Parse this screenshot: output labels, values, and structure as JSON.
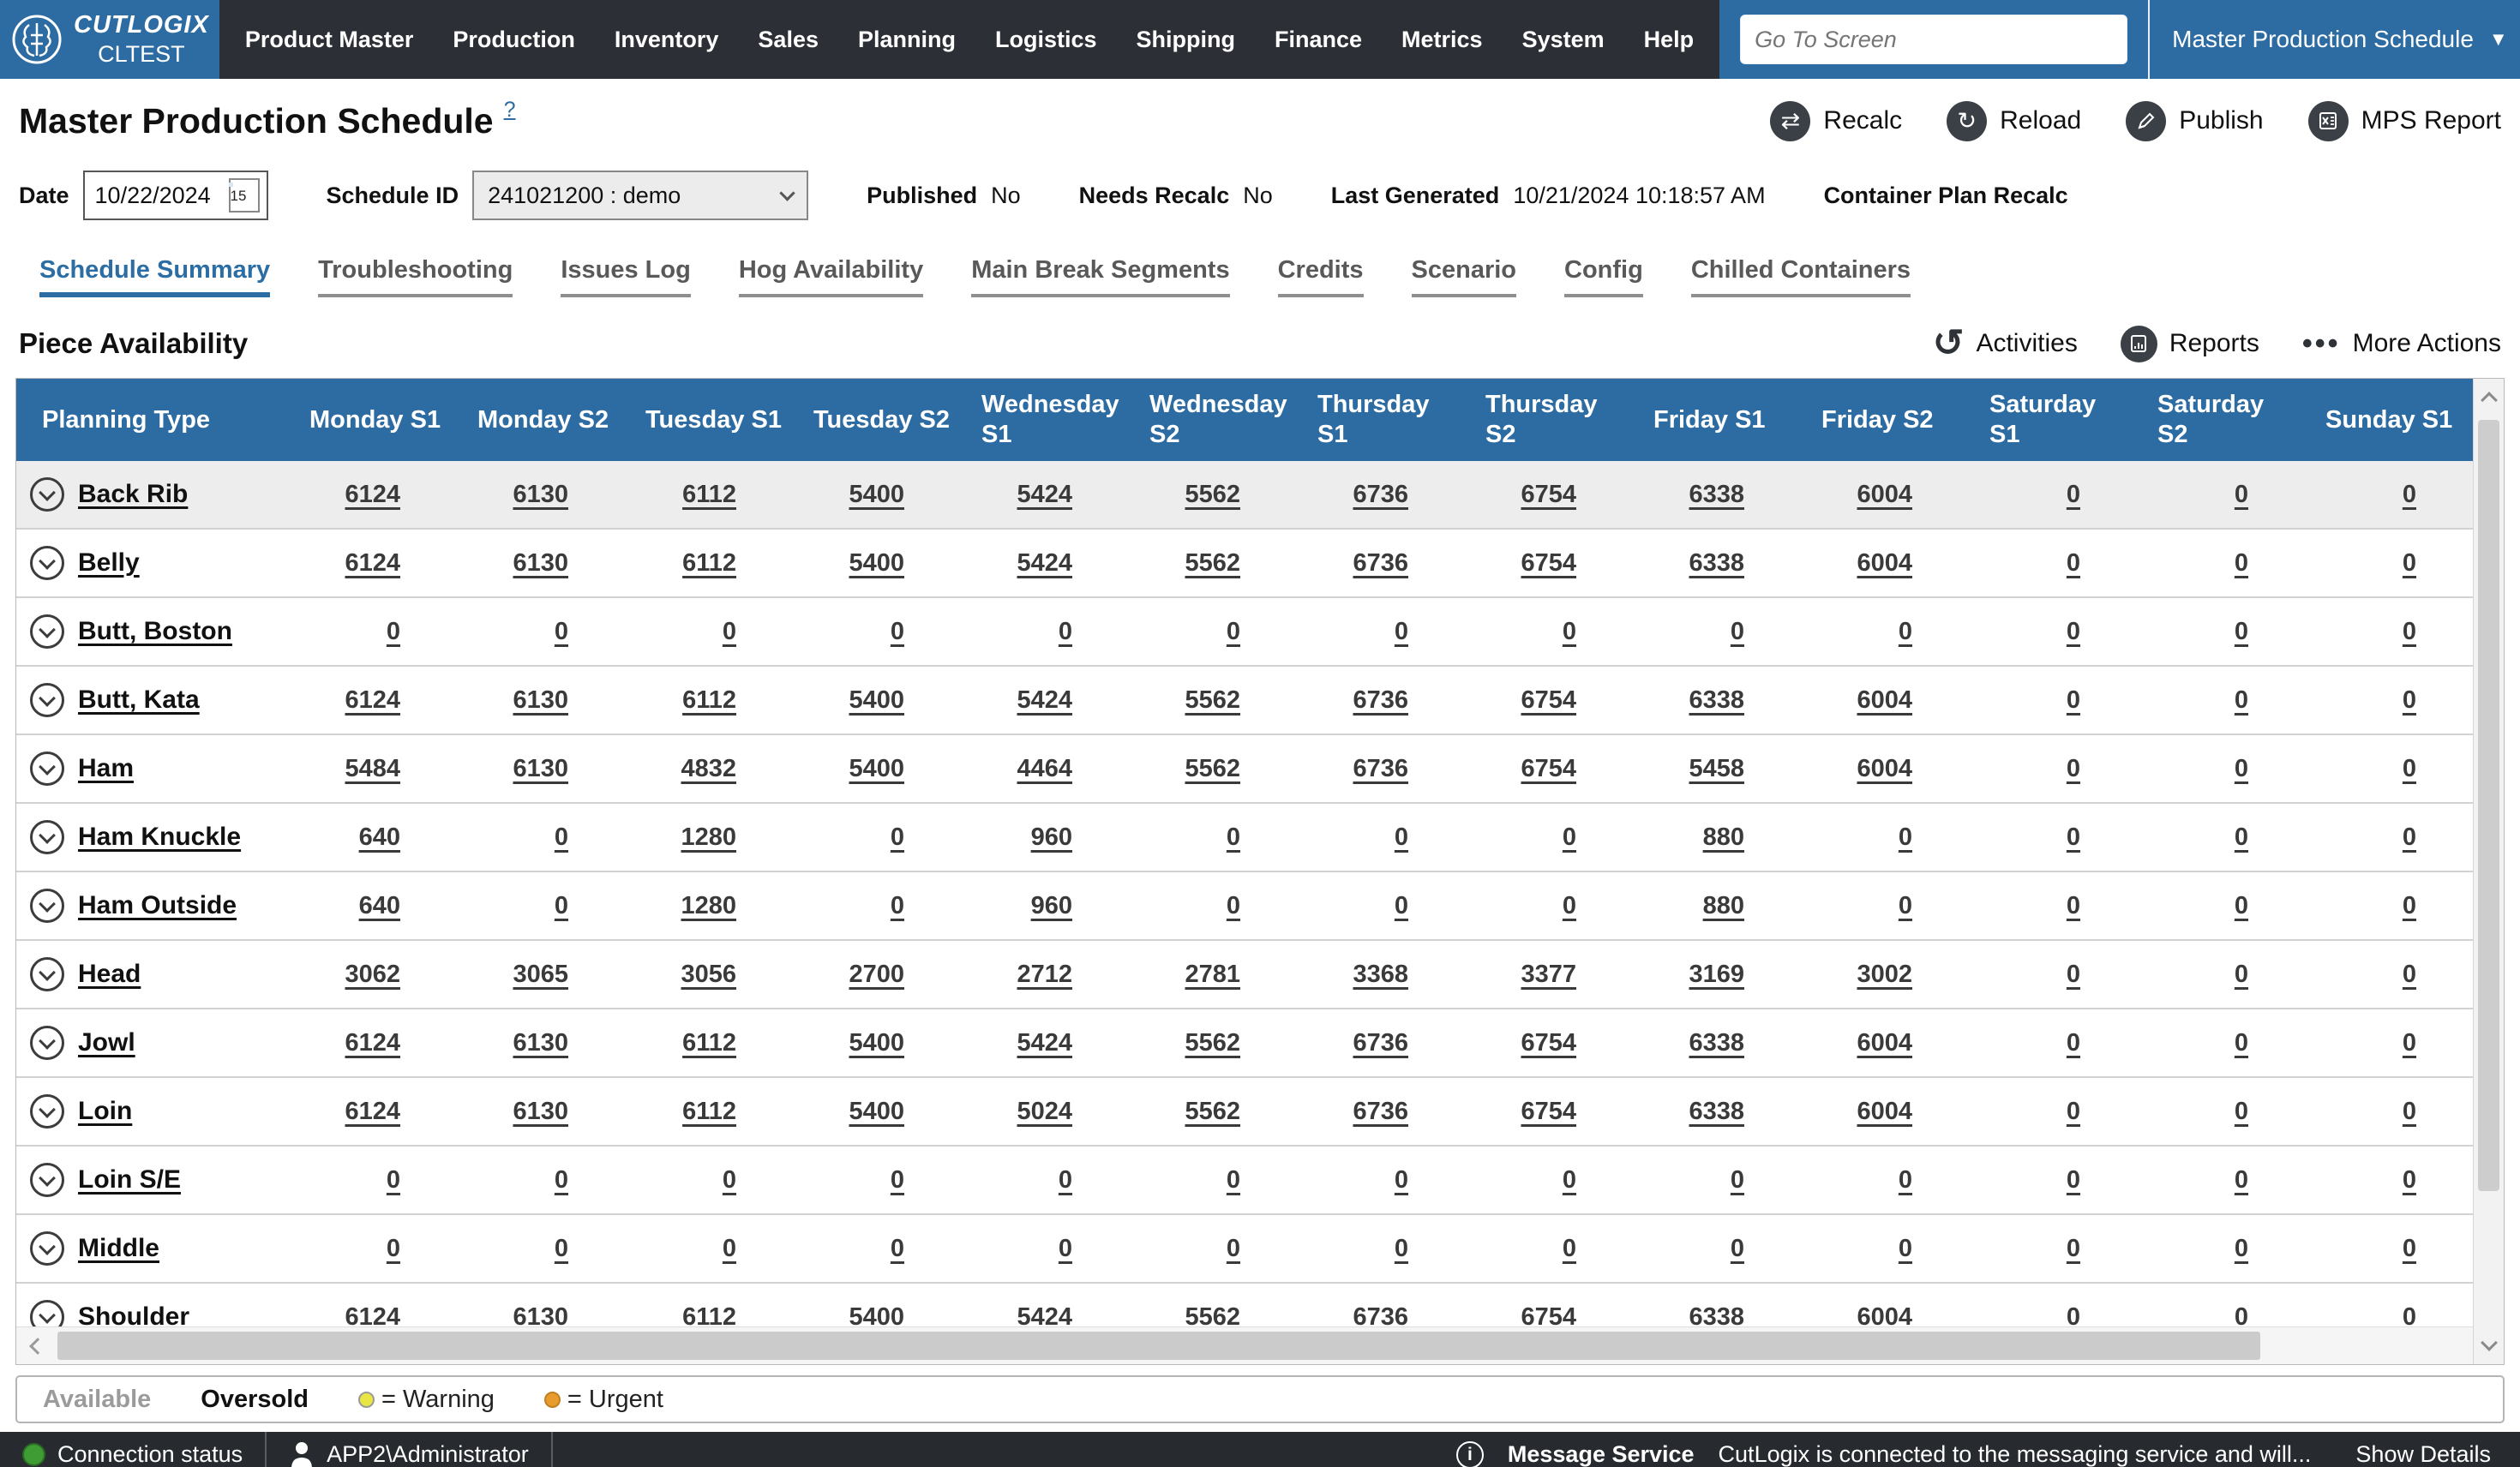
{
  "colors": {
    "accent_blue": "#2d6ca2",
    "nav_dark": "#2c3036",
    "warning_yellow": "#e8e544",
    "urgent_orange": "#e89b2e",
    "status_green": "#3f9c35"
  },
  "nav": {
    "brand": {
      "name": "CUTLOGIX",
      "env": "CLTEST"
    },
    "items": [
      "Product Master",
      "Production",
      "Inventory",
      "Sales",
      "Planning",
      "Logistics",
      "Shipping",
      "Finance",
      "Metrics",
      "System",
      "Help"
    ],
    "goto_placeholder": "Go To Screen",
    "screen_selector": "Master Production Schedule"
  },
  "titlebar": {
    "title": "Master Production Schedule",
    "help": "?",
    "actions": [
      {
        "label": "Recalc",
        "icon": "recalc-icon",
        "glyph": "⇄"
      },
      {
        "label": "Reload",
        "icon": "reload-icon",
        "glyph": "↻"
      },
      {
        "label": "Publish",
        "icon": "publish-icon",
        "glyph": "pencil"
      },
      {
        "label": "MPS Report",
        "icon": "mps-report-icon",
        "glyph": "excel"
      }
    ]
  },
  "filters": {
    "date_label": "Date",
    "date_value": "10/22/2024",
    "calendar_day": "15",
    "schedule_id_label": "Schedule ID",
    "schedule_id_value": "241021200 :  demo",
    "published_label": "Published",
    "published_value": "No",
    "needs_recalc_label": "Needs Recalc",
    "needs_recalc_value": "No",
    "last_generated_label": "Last Generated",
    "last_generated_value": "10/21/2024 10:18:57 AM",
    "container_plan_recalc_label": "Container Plan Recalc"
  },
  "tabs": {
    "active_index": 0,
    "items": [
      "Schedule Summary",
      "Troubleshooting",
      "Issues Log",
      "Hog Availability",
      "Main Break Segments",
      "Credits",
      "Scenario",
      "Config",
      "Chilled Containers"
    ]
  },
  "section": {
    "title": "Piece Availability",
    "actions": [
      {
        "label": "Activities",
        "icon": "activities-icon"
      },
      {
        "label": "Reports",
        "icon": "reports-icon"
      },
      {
        "label": "More Actions",
        "icon": "more-actions-icon"
      }
    ]
  },
  "table": {
    "columns": [
      "Planning Type",
      "Monday S1",
      "Monday S2",
      "Tuesday S1",
      "Tuesday S2",
      "Wednesday S1",
      "Wednesday S2",
      "Thursday S1",
      "Thursday S2",
      "Friday S1",
      "Friday S2",
      "Saturday S1",
      "Saturday S2",
      "Sunday S1"
    ],
    "rows": [
      {
        "name": "Back Rib",
        "highlighted": true,
        "values": [
          6124,
          6130,
          6112,
          5400,
          5424,
          5562,
          6736,
          6754,
          6338,
          6004,
          0,
          0,
          0
        ]
      },
      {
        "name": "Belly",
        "highlighted": false,
        "values": [
          6124,
          6130,
          6112,
          5400,
          5424,
          5562,
          6736,
          6754,
          6338,
          6004,
          0,
          0,
          0
        ]
      },
      {
        "name": "Butt, Boston",
        "highlighted": false,
        "values": [
          0,
          0,
          0,
          0,
          0,
          0,
          0,
          0,
          0,
          0,
          0,
          0,
          0
        ]
      },
      {
        "name": "Butt, Kata",
        "highlighted": false,
        "values": [
          6124,
          6130,
          6112,
          5400,
          5424,
          5562,
          6736,
          6754,
          6338,
          6004,
          0,
          0,
          0
        ]
      },
      {
        "name": "Ham",
        "highlighted": false,
        "values": [
          5484,
          6130,
          4832,
          5400,
          4464,
          5562,
          6736,
          6754,
          5458,
          6004,
          0,
          0,
          0
        ]
      },
      {
        "name": "Ham Knuckle",
        "highlighted": false,
        "values": [
          640,
          0,
          1280,
          0,
          960,
          0,
          0,
          0,
          880,
          0,
          0,
          0,
          0
        ]
      },
      {
        "name": "Ham Outside",
        "highlighted": false,
        "values": [
          640,
          0,
          1280,
          0,
          960,
          0,
          0,
          0,
          880,
          0,
          0,
          0,
          0
        ]
      },
      {
        "name": "Head",
        "highlighted": false,
        "values": [
          3062,
          3065,
          3056,
          2700,
          2712,
          2781,
          3368,
          3377,
          3169,
          3002,
          0,
          0,
          0
        ]
      },
      {
        "name": "Jowl",
        "highlighted": false,
        "values": [
          6124,
          6130,
          6112,
          5400,
          5424,
          5562,
          6736,
          6754,
          6338,
          6004,
          0,
          0,
          0
        ]
      },
      {
        "name": "Loin",
        "highlighted": false,
        "values": [
          6124,
          6130,
          6112,
          5400,
          5024,
          5562,
          6736,
          6754,
          6338,
          6004,
          0,
          0,
          0
        ]
      },
      {
        "name": "Loin S/E",
        "highlighted": false,
        "values": [
          0,
          0,
          0,
          0,
          0,
          0,
          0,
          0,
          0,
          0,
          0,
          0,
          0
        ]
      },
      {
        "name": "Middle",
        "highlighted": false,
        "values": [
          0,
          0,
          0,
          0,
          0,
          0,
          0,
          0,
          0,
          0,
          0,
          0,
          0
        ]
      },
      {
        "name": "Shoulder",
        "highlighted": false,
        "values": [
          6124,
          6130,
          6112,
          5400,
          5424,
          5562,
          6736,
          6754,
          6338,
          6004,
          0,
          0,
          0
        ]
      }
    ]
  },
  "legend": {
    "available": "Available",
    "oversold": "Oversold",
    "warning": "= Warning",
    "urgent": "= Urgent"
  },
  "statusbar": {
    "connection": "Connection status",
    "user": "APP2\\Administrator",
    "message_service_label": "Message Service",
    "message": "CutLogix is connected to the messaging service and will...",
    "show_details": "Show Details"
  }
}
